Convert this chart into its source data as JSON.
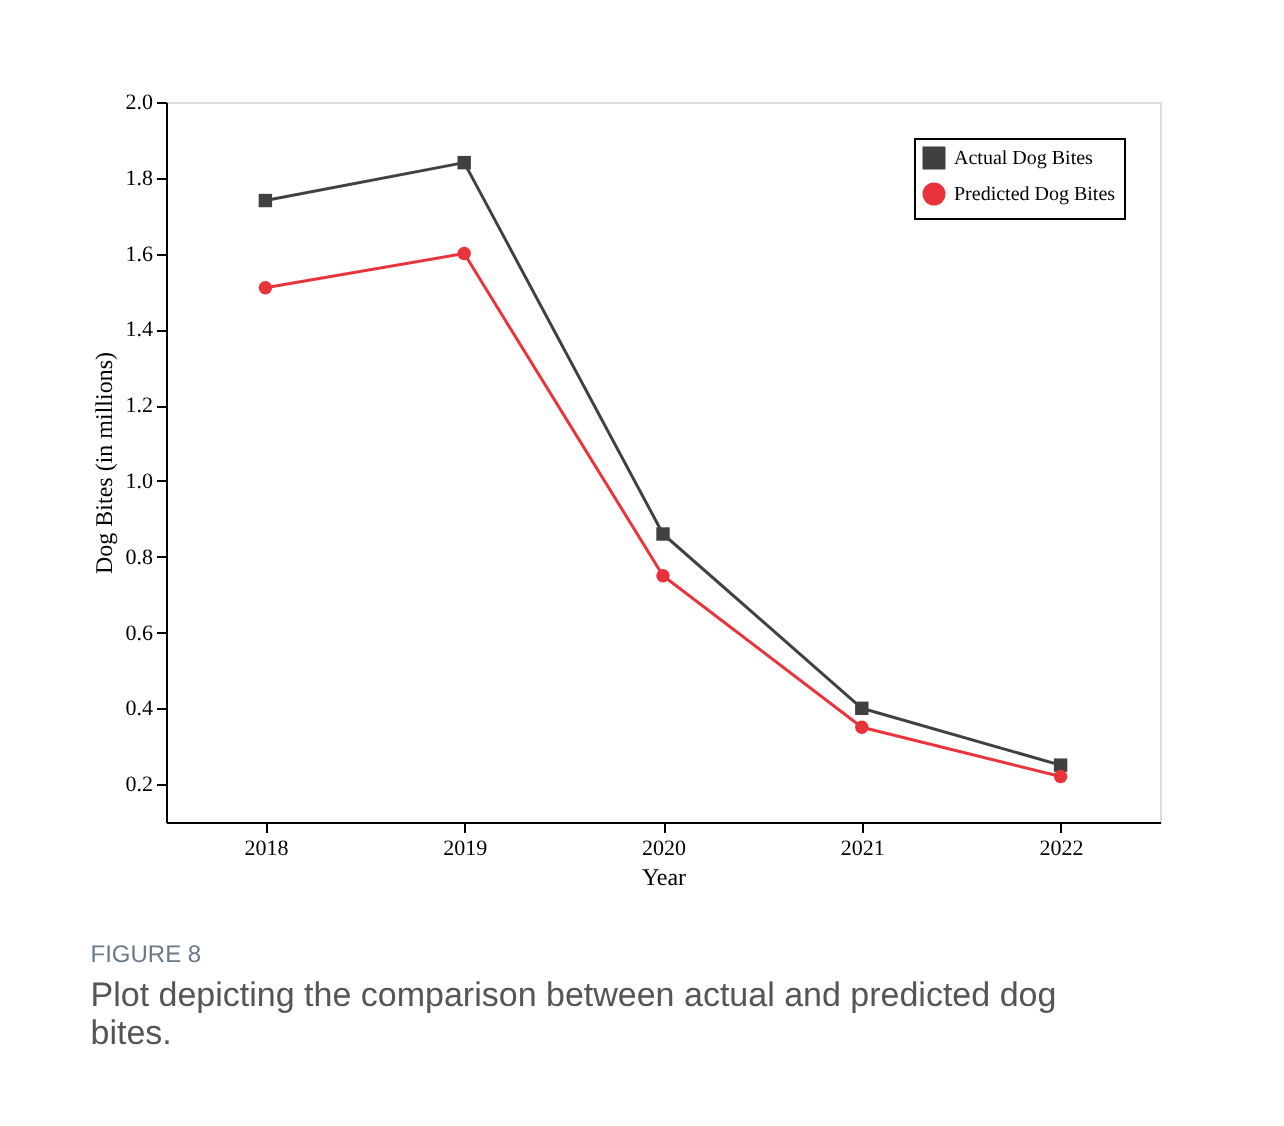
{
  "chart_data": {
    "type": "line",
    "xlabel": "Year",
    "ylabel": "Dog Bites (in millions)",
    "x": [
      2018,
      2019,
      2020,
      2021,
      2022
    ],
    "series": [
      {
        "name": "Actual Dog Bites",
        "color": "#404040",
        "marker": "square",
        "values": [
          1.74,
          1.84,
          0.86,
          0.4,
          0.25
        ]
      },
      {
        "name": "Predicted Dog Bites",
        "color": "#e8333a",
        "marker": "circle",
        "values": [
          1.51,
          1.6,
          0.75,
          0.35,
          0.22
        ]
      }
    ],
    "xlim": [
      2017.5,
      2022.5
    ],
    "xticks": [
      2018,
      2019,
      2020,
      2021,
      2022
    ],
    "ylim": [
      0.1,
      2.0
    ],
    "yticks": [
      0.2,
      0.4,
      0.6,
      0.8,
      {
        "value": 1,
        "label": "1.0"
      },
      1.2,
      1.4,
      1.6,
      1.8,
      {
        "value": 2,
        "label": "2.0"
      }
    ],
    "grid": false,
    "legend": "top right",
    "line_style": "solid",
    "annotations": [
      "FIGURE 8",
      "Plot depicting the comparison between actual and predicted dog bites."
    ]
  }
}
